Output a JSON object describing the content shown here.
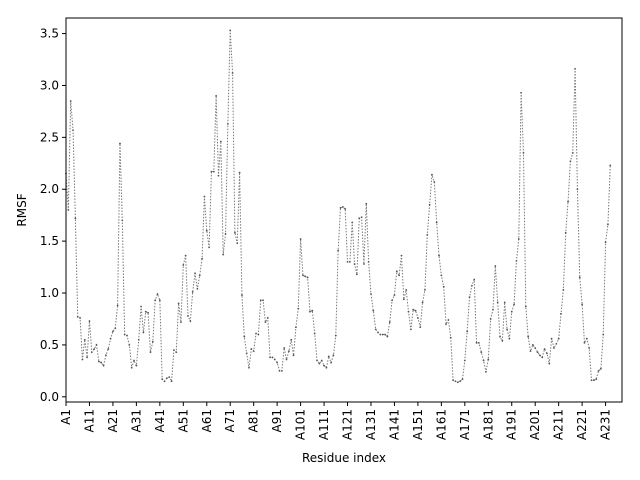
{
  "chart_data": {
    "type": "line",
    "title": "",
    "xlabel": "Residue index",
    "ylabel": "RMSF",
    "ylim": [
      -0.05,
      3.65
    ],
    "yticks": [
      0.0,
      0.5,
      1.0,
      1.5,
      2.0,
      2.5,
      3.0,
      3.5
    ],
    "ytick_labels": [
      "0.0",
      "0.5",
      "1.0",
      "1.5",
      "2.0",
      "2.5",
      "3.0",
      "3.5"
    ],
    "xlim": [
      1,
      238
    ],
    "xticks": [
      1,
      11,
      21,
      31,
      41,
      51,
      61,
      71,
      81,
      91,
      101,
      111,
      121,
      131,
      141,
      151,
      161,
      171,
      181,
      191,
      201,
      211,
      221,
      231
    ],
    "xtick_labels": [
      "A1",
      "A11",
      "A21",
      "A31",
      "A41",
      "A51",
      "A61",
      "A71",
      "A81",
      "A91",
      "A101",
      "A111",
      "A121",
      "A131",
      "A141",
      "A151",
      "A161",
      "A171",
      "A181",
      "A191",
      "A201",
      "A211",
      "A221",
      "A231"
    ],
    "grid": false,
    "series": [
      {
        "name": "",
        "color": "#7a7a7a",
        "x_start": 1,
        "values": [
          2.15,
          1.8,
          2.85,
          2.57,
          1.72,
          0.77,
          0.76,
          0.36,
          0.55,
          0.38,
          0.73,
          0.43,
          0.46,
          0.5,
          0.34,
          0.33,
          0.3,
          0.4,
          0.46,
          0.56,
          0.63,
          0.66,
          0.88,
          2.44,
          1.7,
          0.6,
          0.59,
          0.5,
          0.28,
          0.35,
          0.3,
          0.55,
          0.87,
          0.62,
          0.82,
          0.81,
          0.43,
          0.53,
          0.93,
          0.99,
          0.93,
          0.17,
          0.15,
          0.18,
          0.19,
          0.15,
          0.45,
          0.43,
          0.9,
          0.72,
          1.27,
          1.36,
          0.78,
          0.73,
          1.01,
          1.19,
          1.04,
          1.17,
          1.33,
          1.93,
          1.6,
          1.44,
          2.17,
          2.17,
          2.9,
          2.13,
          2.46,
          1.37,
          1.57,
          2.63,
          3.53,
          3.12,
          1.58,
          1.48,
          2.16,
          0.98,
          0.58,
          0.42,
          0.28,
          0.46,
          0.44,
          0.61,
          0.6,
          0.93,
          0.93,
          0.72,
          0.76,
          0.38,
          0.38,
          0.36,
          0.33,
          0.25,
          0.25,
          0.47,
          0.36,
          0.44,
          0.55,
          0.4,
          0.67,
          0.85,
          1.52,
          1.17,
          1.16,
          1.15,
          0.82,
          0.83,
          0.61,
          0.35,
          0.32,
          0.35,
          0.3,
          0.28,
          0.39,
          0.33,
          0.4,
          0.59,
          1.41,
          1.82,
          1.83,
          1.81,
          1.3,
          1.3,
          1.68,
          1.28,
          1.18,
          1.72,
          1.73,
          1.28,
          1.86,
          1.3,
          0.99,
          0.83,
          0.65,
          0.62,
          0.6,
          0.6,
          0.6,
          0.58,
          0.72,
          0.93,
          0.98,
          1.21,
          1.17,
          1.36,
          0.94,
          1.03,
          0.82,
          0.65,
          0.84,
          0.83,
          0.76,
          0.67,
          0.91,
          1.03,
          1.56,
          1.85,
          2.14,
          2.07,
          1.68,
          1.36,
          1.17,
          1.06,
          0.7,
          0.74,
          0.57,
          0.16,
          0.15,
          0.14,
          0.15,
          0.17,
          0.35,
          0.63,
          0.96,
          1.07,
          1.13,
          0.52,
          0.52,
          0.43,
          0.35,
          0.24,
          0.36,
          0.75,
          0.84,
          1.26,
          0.91,
          0.58,
          0.54,
          0.91,
          0.65,
          0.56,
          0.82,
          0.89,
          1.31,
          1.52,
          2.93,
          2.35,
          0.87,
          0.58,
          0.44,
          0.5,
          0.47,
          0.43,
          0.4,
          0.38,
          0.46,
          0.42,
          0.32,
          0.56,
          0.47,
          0.51,
          0.56,
          0.8,
          1.03,
          1.58,
          1.88,
          2.27,
          2.35,
          3.16,
          2.0,
          1.15,
          0.89,
          0.52,
          0.56,
          0.47,
          0.16,
          0.16,
          0.17,
          0.25,
          0.27,
          0.6,
          1.49,
          1.66,
          2.23
        ]
      }
    ]
  }
}
